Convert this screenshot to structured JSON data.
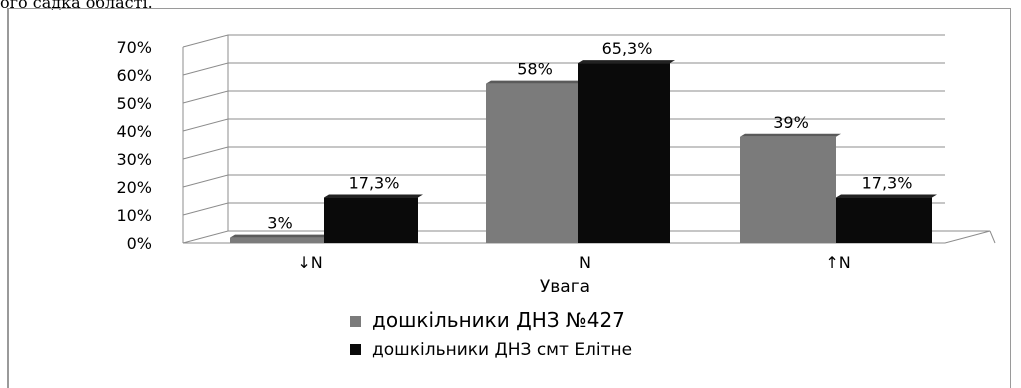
{
  "page": {
    "top_text": "ого садка області."
  },
  "chart_data": {
    "type": "bar",
    "categories": [
      "↓N",
      "N",
      "↑N"
    ],
    "series": [
      {
        "name": "дошкільники ДНЗ №427",
        "values": [
          3,
          58,
          39
        ],
        "labels": [
          "3%",
          "58%",
          "39%"
        ],
        "color": "#7b7b7b"
      },
      {
        "name": "дошкільники ДНЗ смт Елітне",
        "values": [
          17.3,
          65.3,
          17.3
        ],
        "labels": [
          "17,3%",
          "65,3%",
          "17,3%"
        ],
        "color": "#0a0a0a"
      }
    ],
    "y_ticks": [
      "0%",
      "10%",
      "20%",
      "30%",
      "40%",
      "50%",
      "60%",
      "70%"
    ],
    "ylim": [
      0,
      70
    ],
    "xlabel": "Увага",
    "ylabel": "",
    "title": "",
    "grid": true,
    "legend_position": "bottom"
  }
}
